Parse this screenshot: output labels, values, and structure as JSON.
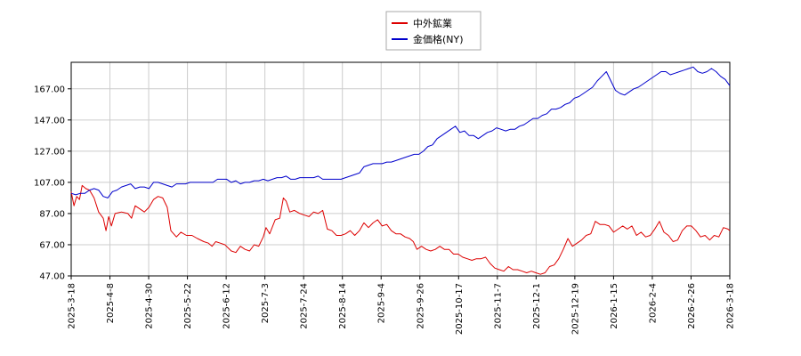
{
  "chart_data": {
    "type": "line",
    "title": "",
    "xlabel": "",
    "ylabel": "",
    "ylim": [
      47.0,
      184.0
    ],
    "y_ticks": [
      "47.00",
      "67.00",
      "87.00",
      "107.00",
      "127.00",
      "147.00",
      "167.00"
    ],
    "x_ticks": [
      "2025-3-18",
      "2025-4-8",
      "2025-4-30",
      "2025-5-22",
      "2025-6-12",
      "2025-7-3",
      "2025-7-24",
      "2025-8-14",
      "2025-9-4",
      "2025-9-26",
      "2025-10-17",
      "2025-11-7",
      "2025-12-1",
      "2025-12-19",
      "2026-1-15",
      "2026-2-4",
      "2026-2-26",
      "2026-3-18"
    ],
    "grid": true,
    "legend_position": "top-center",
    "series": [
      {
        "name": "中外鉱業",
        "color": "#dd0000",
        "points": [
          [
            0,
            101
          ],
          [
            0.3,
            92
          ],
          [
            0.6,
            98
          ],
          [
            0.9,
            96
          ],
          [
            1.2,
            105
          ],
          [
            1.6,
            103
          ],
          [
            2.0,
            102
          ],
          [
            2.5,
            97
          ],
          [
            3.0,
            88
          ],
          [
            3.5,
            84
          ],
          [
            3.8,
            76
          ],
          [
            4.1,
            85
          ],
          [
            4.4,
            79
          ],
          [
            4.8,
            87
          ],
          [
            5.5,
            88
          ],
          [
            6.2,
            87
          ],
          [
            6.6,
            84
          ],
          [
            7.0,
            92
          ],
          [
            7.5,
            90
          ],
          [
            8.0,
            88
          ],
          [
            8.5,
            91
          ],
          [
            9.0,
            96
          ],
          [
            9.5,
            98
          ],
          [
            10.0,
            97
          ],
          [
            10.5,
            91
          ],
          [
            10.9,
            76
          ],
          [
            11.5,
            72
          ],
          [
            12.0,
            75
          ],
          [
            12.6,
            73
          ],
          [
            13.2,
            73
          ],
          [
            13.8,
            71
          ],
          [
            14.5,
            69
          ],
          [
            15.0,
            68
          ],
          [
            15.4,
            66
          ],
          [
            15.8,
            69
          ],
          [
            16.3,
            68
          ],
          [
            16.8,
            67
          ],
          [
            17.5,
            63
          ],
          [
            18.0,
            62
          ],
          [
            18.5,
            66
          ],
          [
            19.0,
            64
          ],
          [
            19.5,
            63
          ],
          [
            20.0,
            67
          ],
          [
            20.5,
            66
          ],
          [
            21.0,
            72
          ],
          [
            21.3,
            78
          ],
          [
            21.7,
            74
          ],
          [
            22.3,
            83
          ],
          [
            22.8,
            84
          ],
          [
            23.2,
            97
          ],
          [
            23.5,
            95
          ],
          [
            23.9,
            88
          ],
          [
            24.4,
            89
          ],
          [
            25.0,
            87
          ],
          [
            25.5,
            86
          ],
          [
            26.0,
            85
          ],
          [
            26.5,
            88
          ],
          [
            27.0,
            87
          ],
          [
            27.5,
            89
          ],
          [
            28.0,
            77
          ],
          [
            28.5,
            76
          ],
          [
            29.0,
            73
          ],
          [
            29.5,
            73
          ],
          [
            30.0,
            74
          ],
          [
            30.5,
            76
          ],
          [
            31.0,
            73
          ],
          [
            31.5,
            76
          ],
          [
            32.0,
            81
          ],
          [
            32.5,
            78
          ],
          [
            33.0,
            81
          ],
          [
            33.5,
            83
          ],
          [
            34.0,
            79
          ],
          [
            34.5,
            80
          ],
          [
            35.0,
            76
          ],
          [
            35.5,
            74
          ],
          [
            36.0,
            74
          ],
          [
            36.5,
            72
          ],
          [
            37.0,
            71
          ],
          [
            37.4,
            69
          ],
          [
            37.8,
            64
          ],
          [
            38.3,
            66
          ],
          [
            38.8,
            64
          ],
          [
            39.3,
            63
          ],
          [
            39.8,
            64
          ],
          [
            40.3,
            66
          ],
          [
            40.8,
            64
          ],
          [
            41.3,
            64
          ],
          [
            41.8,
            61
          ],
          [
            42.3,
            61
          ],
          [
            42.8,
            59
          ],
          [
            43.3,
            58
          ],
          [
            43.8,
            57
          ],
          [
            44.3,
            58
          ],
          [
            44.8,
            58
          ],
          [
            45.3,
            59
          ],
          [
            45.8,
            55
          ],
          [
            46.3,
            52
          ],
          [
            46.8,
            51
          ],
          [
            47.3,
            50
          ],
          [
            47.8,
            53
          ],
          [
            48.3,
            51
          ],
          [
            48.8,
            51
          ],
          [
            49.3,
            50
          ],
          [
            49.8,
            49
          ],
          [
            50.3,
            50
          ],
          [
            50.8,
            49
          ],
          [
            51.3,
            48
          ],
          [
            51.8,
            49
          ],
          [
            52.3,
            53
          ],
          [
            52.8,
            54
          ],
          [
            53.3,
            58
          ],
          [
            53.8,
            64
          ],
          [
            54.3,
            71
          ],
          [
            54.8,
            66
          ],
          [
            55.3,
            68
          ],
          [
            55.8,
            70
          ],
          [
            56.3,
            73
          ],
          [
            56.8,
            74
          ],
          [
            57.3,
            82
          ],
          [
            57.8,
            80
          ],
          [
            58.3,
            80
          ],
          [
            58.8,
            79
          ],
          [
            59.3,
            75
          ],
          [
            59.8,
            77
          ],
          [
            60.3,
            79
          ],
          [
            60.8,
            77
          ],
          [
            61.3,
            79
          ],
          [
            61.8,
            73
          ],
          [
            62.3,
            75
          ],
          [
            62.8,
            72
          ],
          [
            63.3,
            73
          ],
          [
            63.8,
            77
          ],
          [
            64.3,
            82
          ],
          [
            64.8,
            75
          ],
          [
            65.3,
            73
          ],
          [
            65.8,
            69
          ],
          [
            66.3,
            70
          ],
          [
            66.8,
            76
          ],
          [
            67.3,
            79
          ],
          [
            67.8,
            79
          ],
          [
            68.3,
            76
          ],
          [
            68.8,
            72
          ],
          [
            69.3,
            73
          ],
          [
            69.8,
            70
          ],
          [
            70.3,
            73
          ],
          [
            70.8,
            72
          ],
          [
            71.3,
            78
          ],
          [
            71.8,
            77
          ],
          [
            72.0,
            76
          ]
        ]
      },
      {
        "name": "金価格(NY)",
        "color": "#0000cc",
        "points": [
          [
            0,
            100
          ],
          [
            0.5,
            99
          ],
          [
            1.0,
            100
          ],
          [
            1.5,
            100
          ],
          [
            2.0,
            102
          ],
          [
            2.5,
            103
          ],
          [
            3.0,
            102
          ],
          [
            3.5,
            98
          ],
          [
            4.0,
            97
          ],
          [
            4.5,
            101
          ],
          [
            5.0,
            102
          ],
          [
            5.5,
            104
          ],
          [
            6.0,
            105
          ],
          [
            6.5,
            106
          ],
          [
            7.0,
            103
          ],
          [
            7.5,
            104
          ],
          [
            8.0,
            104
          ],
          [
            8.5,
            103
          ],
          [
            9.0,
            107
          ],
          [
            9.5,
            107
          ],
          [
            10.0,
            106
          ],
          [
            10.5,
            105
          ],
          [
            11.0,
            104
          ],
          [
            11.5,
            106
          ],
          [
            12.0,
            106
          ],
          [
            12.5,
            106
          ],
          [
            13.0,
            107
          ],
          [
            13.5,
            107
          ],
          [
            14.0,
            107
          ],
          [
            14.5,
            107
          ],
          [
            15.0,
            107
          ],
          [
            15.5,
            107
          ],
          [
            16.0,
            109
          ],
          [
            16.5,
            109
          ],
          [
            17.0,
            109
          ],
          [
            17.5,
            107
          ],
          [
            18.0,
            108
          ],
          [
            18.5,
            106
          ],
          [
            19.0,
            107
          ],
          [
            19.5,
            107
          ],
          [
            20.0,
            108
          ],
          [
            20.5,
            108
          ],
          [
            21.0,
            109
          ],
          [
            21.5,
            108
          ],
          [
            22.0,
            109
          ],
          [
            22.5,
            110
          ],
          [
            23.0,
            110
          ],
          [
            23.5,
            111
          ],
          [
            24.0,
            109
          ],
          [
            24.5,
            109
          ],
          [
            25.0,
            110
          ],
          [
            25.5,
            110
          ],
          [
            26.0,
            110
          ],
          [
            26.5,
            110
          ],
          [
            27.0,
            111
          ],
          [
            27.5,
            109
          ],
          [
            28.0,
            109
          ],
          [
            28.5,
            109
          ],
          [
            29.0,
            109
          ],
          [
            29.5,
            109
          ],
          [
            30.0,
            110
          ],
          [
            30.5,
            111
          ],
          [
            31.0,
            112
          ],
          [
            31.5,
            113
          ],
          [
            32.0,
            117
          ],
          [
            32.5,
            118
          ],
          [
            33.0,
            119
          ],
          [
            33.5,
            119
          ],
          [
            34.0,
            119
          ],
          [
            34.5,
            120
          ],
          [
            35.0,
            120
          ],
          [
            35.5,
            121
          ],
          [
            36.0,
            122
          ],
          [
            36.5,
            123
          ],
          [
            37.0,
            124
          ],
          [
            37.5,
            125
          ],
          [
            38.0,
            125
          ],
          [
            38.5,
            127
          ],
          [
            39.0,
            130
          ],
          [
            39.5,
            131
          ],
          [
            40.0,
            135
          ],
          [
            40.5,
            137
          ],
          [
            41.0,
            139
          ],
          [
            41.5,
            141
          ],
          [
            42.0,
            143
          ],
          [
            42.5,
            139
          ],
          [
            43.0,
            140
          ],
          [
            43.5,
            137
          ],
          [
            44.0,
            137
          ],
          [
            44.5,
            135
          ],
          [
            45.0,
            137
          ],
          [
            45.5,
            139
          ],
          [
            46.0,
            140
          ],
          [
            46.5,
            142
          ],
          [
            47.0,
            141
          ],
          [
            47.5,
            140
          ],
          [
            48.0,
            141
          ],
          [
            48.5,
            141
          ],
          [
            49.0,
            143
          ],
          [
            49.5,
            144
          ],
          [
            50.0,
            146
          ],
          [
            50.5,
            148
          ],
          [
            51.0,
            148
          ],
          [
            51.5,
            150
          ],
          [
            52.0,
            151
          ],
          [
            52.5,
            154
          ],
          [
            53.0,
            154
          ],
          [
            53.5,
            155
          ],
          [
            54.0,
            157
          ],
          [
            54.5,
            158
          ],
          [
            55.0,
            161
          ],
          [
            55.5,
            162
          ],
          [
            56.0,
            164
          ],
          [
            56.5,
            166
          ],
          [
            57.0,
            168
          ],
          [
            57.5,
            172
          ],
          [
            58.0,
            175
          ],
          [
            58.5,
            178
          ],
          [
            59.0,
            172
          ],
          [
            59.5,
            166
          ],
          [
            60.0,
            164
          ],
          [
            60.5,
            163
          ],
          [
            61.0,
            165
          ],
          [
            61.5,
            167
          ],
          [
            62.0,
            168
          ],
          [
            62.5,
            170
          ],
          [
            63.0,
            172
          ],
          [
            63.5,
            174
          ],
          [
            64.0,
            176
          ],
          [
            64.5,
            178
          ],
          [
            65.0,
            178
          ],
          [
            65.5,
            176
          ],
          [
            66.0,
            177
          ],
          [
            66.5,
            178
          ],
          [
            67.0,
            179
          ],
          [
            67.5,
            180
          ],
          [
            68.0,
            181
          ],
          [
            68.5,
            178
          ],
          [
            69.0,
            177
          ],
          [
            69.5,
            178
          ],
          [
            70.0,
            180
          ],
          [
            70.5,
            178
          ],
          [
            71.0,
            175
          ],
          [
            71.5,
            173
          ],
          [
            72.0,
            169
          ]
        ]
      }
    ]
  }
}
